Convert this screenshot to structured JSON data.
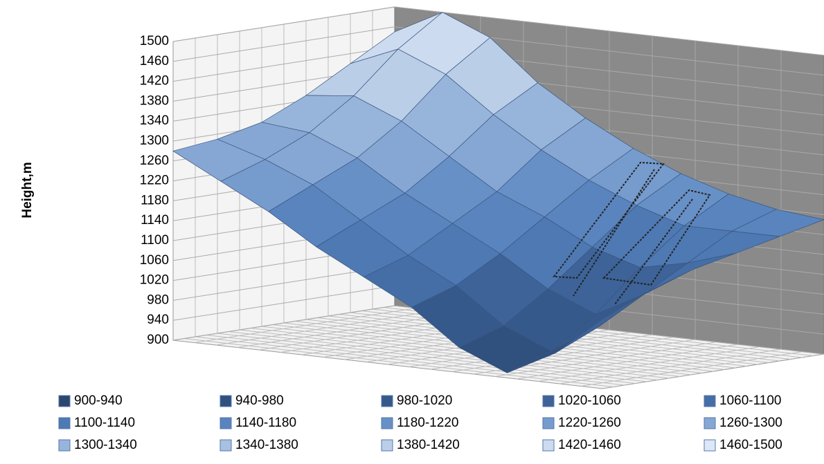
{
  "chart_data": {
    "type": "surface",
    "ylabel": "Height,m",
    "ylim": [
      900,
      1500
    ],
    "yticks": [
      900,
      940,
      980,
      1020,
      1060,
      1100,
      1140,
      1180,
      1220,
      1260,
      1300,
      1340,
      1380,
      1420,
      1460,
      1500
    ],
    "grid": true,
    "legend": "bottom",
    "surface": [
      [
        1280,
        1230,
        1180,
        1120,
        1070,
        1020,
        950,
        910,
        960,
        1040
      ],
      [
        1290,
        1260,
        1220,
        1160,
        1100,
        1050,
        980,
        940,
        1000,
        1080
      ],
      [
        1310,
        1300,
        1260,
        1200,
        1150,
        1100,
        1040,
        1000,
        1050,
        1110
      ],
      [
        1350,
        1360,
        1320,
        1260,
        1200,
        1160,
        1110,
        1080,
        1100,
        1130
      ],
      [
        1400,
        1440,
        1400,
        1330,
        1270,
        1220,
        1180,
        1150,
        1150,
        1150
      ],
      [
        1450,
        1500,
        1460,
        1380,
        1320,
        1270,
        1230,
        1200,
        1180,
        1170
      ]
    ],
    "series": [
      {
        "name": "900-940",
        "color": "#2b4770"
      },
      {
        "name": "940-980",
        "color": "#30507e"
      },
      {
        "name": "980-1020",
        "color": "#36598b"
      },
      {
        "name": "1020-1060",
        "color": "#3d6398"
      },
      {
        "name": "1060-1100",
        "color": "#456ea6"
      },
      {
        "name": "1100-1140",
        "color": "#4e79b3"
      },
      {
        "name": "1140-1180",
        "color": "#5a84bd"
      },
      {
        "name": "1180-1220",
        "color": "#6790c6"
      },
      {
        "name": "1220-1260",
        "color": "#769bcd"
      },
      {
        "name": "1260-1300",
        "color": "#86a7d4"
      },
      {
        "name": "1300-1340",
        "color": "#97b4db"
      },
      {
        "name": "1340-1380",
        "color": "#a8c1e2"
      },
      {
        "name": "1380-1420",
        "color": "#bacee8"
      },
      {
        "name": "1420-1460",
        "color": "#ccdbef"
      },
      {
        "name": "1460-1500",
        "color": "#dde8f6"
      }
    ]
  }
}
